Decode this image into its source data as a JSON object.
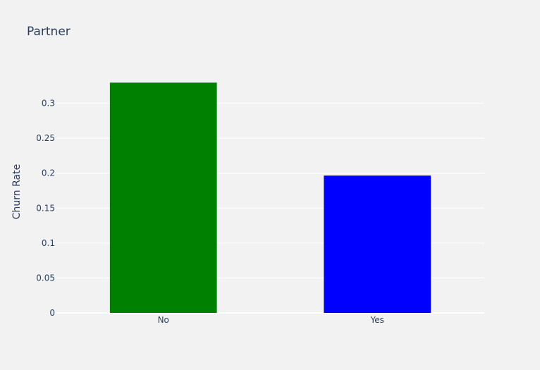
{
  "chart_data": {
    "type": "bar",
    "title": "Partner",
    "xlabel": "",
    "ylabel": "Churn Rate",
    "categories": [
      "No",
      "Yes"
    ],
    "values": [
      0.3296,
      0.1966
    ],
    "bar_colors": [
      "#008000",
      "#0000ff"
    ],
    "ylim": [
      0,
      0.347
    ],
    "yticks": [
      0,
      0.05,
      0.1,
      0.15,
      0.2,
      0.25,
      0.3
    ],
    "ytick_labels": [
      "0",
      "0.05",
      "0.1",
      "0.15",
      "0.2",
      "0.25",
      "0.3"
    ],
    "grid": true,
    "legend": "none"
  },
  "colors": {
    "background": "#f2f2f2",
    "grid": "#ffffff",
    "text": "#2a3f5f"
  }
}
